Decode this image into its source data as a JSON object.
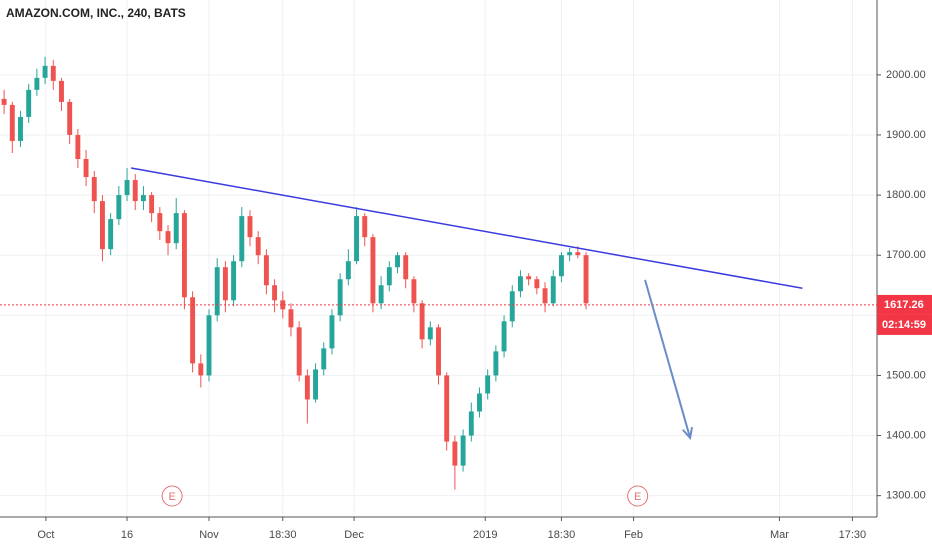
{
  "chart_data": {
    "type": "candlestick",
    "title": "AMAZON.COM, INC., 240, BATS",
    "open": [
      1960,
      1950,
      1890,
      1930,
      1975,
      1995,
      2015,
      1990,
      1955,
      1900,
      1860,
      1830,
      1790,
      1710,
      1760,
      1800,
      1825,
      1790,
      1800,
      1770,
      1740,
      1720,
      1770,
      1630,
      1520,
      1500,
      1600,
      1680,
      1625,
      1690,
      1765,
      1730,
      1700,
      1650,
      1625,
      1610,
      1580,
      1500,
      1460,
      1510,
      1545,
      1600,
      1660,
      1690,
      1765,
      1730,
      1620,
      1650,
      1680,
      1700,
      1660,
      1620,
      1560,
      1580,
      1500,
      1390,
      1350,
      1400,
      1440,
      1470,
      1500,
      1540,
      1590,
      1640,
      1665,
      1660,
      1645,
      1620,
      1665,
      1700,
      1705,
      1700
    ],
    "high": [
      1975,
      1955,
      1940,
      1985,
      2010,
      2030,
      2025,
      1995,
      1960,
      1910,
      1875,
      1840,
      1800,
      1770,
      1815,
      1845,
      1835,
      1815,
      1805,
      1780,
      1750,
      1795,
      1775,
      1640,
      1535,
      1610,
      1695,
      1690,
      1700,
      1780,
      1775,
      1740,
      1710,
      1660,
      1640,
      1620,
      1590,
      1510,
      1520,
      1555,
      1610,
      1670,
      1710,
      1780,
      1770,
      1735,
      1665,
      1690,
      1705,
      1705,
      1665,
      1625,
      1590,
      1585,
      1505,
      1400,
      1410,
      1455,
      1480,
      1510,
      1550,
      1600,
      1650,
      1675,
      1670,
      1665,
      1655,
      1675,
      1705,
      1712,
      1715,
      1705
    ],
    "low": [
      1935,
      1870,
      1880,
      1920,
      1965,
      1985,
      1975,
      1940,
      1885,
      1845,
      1815,
      1770,
      1690,
      1700,
      1750,
      1790,
      1775,
      1775,
      1755,
      1725,
      1700,
      1710,
      1610,
      1505,
      1480,
      1490,
      1590,
      1605,
      1615,
      1680,
      1715,
      1685,
      1635,
      1605,
      1595,
      1565,
      1490,
      1420,
      1455,
      1500,
      1535,
      1590,
      1650,
      1685,
      1715,
      1605,
      1610,
      1640,
      1670,
      1645,
      1605,
      1545,
      1550,
      1485,
      1375,
      1310,
      1340,
      1390,
      1430,
      1460,
      1490,
      1530,
      1580,
      1630,
      1650,
      1635,
      1605,
      1615,
      1655,
      1690,
      1695,
      1610
    ],
    "close": [
      1950,
      1890,
      1930,
      1975,
      1995,
      2015,
      1990,
      1955,
      1900,
      1860,
      1830,
      1790,
      1710,
      1760,
      1800,
      1825,
      1790,
      1800,
      1770,
      1740,
      1720,
      1770,
      1630,
      1520,
      1500,
      1600,
      1680,
      1625,
      1690,
      1765,
      1730,
      1700,
      1650,
      1625,
      1610,
      1580,
      1500,
      1460,
      1510,
      1545,
      1600,
      1660,
      1690,
      1765,
      1730,
      1620,
      1650,
      1680,
      1700,
      1660,
      1620,
      1560,
      1580,
      1500,
      1390,
      1350,
      1400,
      1440,
      1470,
      1500,
      1540,
      1590,
      1640,
      1665,
      1660,
      1645,
      1620,
      1665,
      1700,
      1705,
      1700,
      1620
    ],
    "up_color": "#26a69a",
    "down_color": "#ef5350",
    "xlim": [
      -0.5,
      106.5
    ],
    "xticks": [
      {
        "value": 5.1,
        "label": "Oct"
      },
      {
        "value": 15,
        "label": "16"
      },
      {
        "value": 25,
        "label": "Nov"
      },
      {
        "value": 34,
        "label": "18:30"
      },
      {
        "value": 42.7,
        "label": "Dec"
      },
      {
        "value": 58.7,
        "label": "2019"
      },
      {
        "value": 68,
        "label": "18:30"
      },
      {
        "value": 76.8,
        "label": "Feb"
      },
      {
        "value": 94.6,
        "label": "Mar"
      },
      {
        "value": 103.5,
        "label": "17:30"
      }
    ],
    "ylim": [
      1264.5,
      2124.5
    ],
    "yticks": [
      {
        "value": 1300,
        "label": "1300.00"
      },
      {
        "value": 1400,
        "label": "1400.00"
      },
      {
        "value": 1500,
        "label": "1500.00"
      },
      {
        "value": 1600,
        "label": "1600.00"
      },
      {
        "value": 1700,
        "label": "1700.00"
      },
      {
        "value": 1800,
        "label": "1800.00"
      },
      {
        "value": 1900,
        "label": "1900.00"
      },
      {
        "value": 2000,
        "label": "2000.00"
      }
    ],
    "grid": true,
    "trendline": {
      "x": [
        15.5,
        97.4
      ],
      "y": [
        1845,
        1645
      ],
      "color": "#3a3adf"
    },
    "arrow": {
      "x": [
        78.2,
        83.7
      ],
      "y": [
        1659,
        1396
      ],
      "color": "#6a8cc7"
    },
    "earnings": [
      {
        "x": 20.5,
        "label": "E"
      },
      {
        "x": 77.3,
        "label": "E"
      }
    ],
    "last_price": 1617.26,
    "countdown": "02:14:59",
    "last_color": "#f23645"
  }
}
